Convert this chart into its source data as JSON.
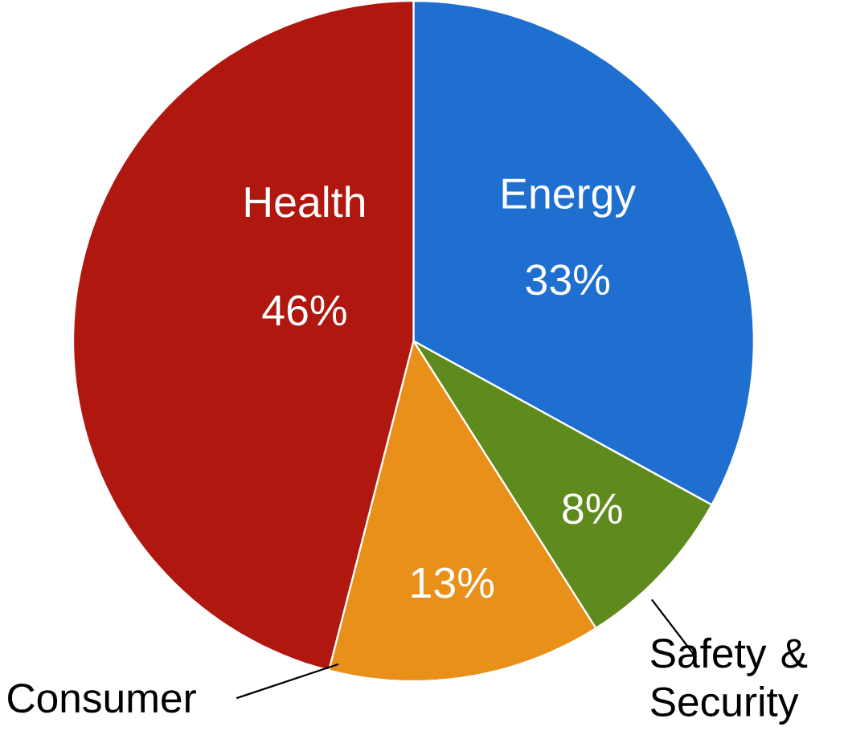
{
  "chart_data": {
    "type": "pie",
    "categories": [
      "Energy",
      "Safety & Security",
      "Consumer",
      "Health"
    ],
    "values": [
      33,
      8,
      13,
      46
    ],
    "value_labels": [
      "33%",
      "8%",
      "13%",
      "46%"
    ],
    "colors": [
      "#1f6fd0",
      "#5f8a1e",
      "#e8901a",
      "#b0170f"
    ]
  }
}
